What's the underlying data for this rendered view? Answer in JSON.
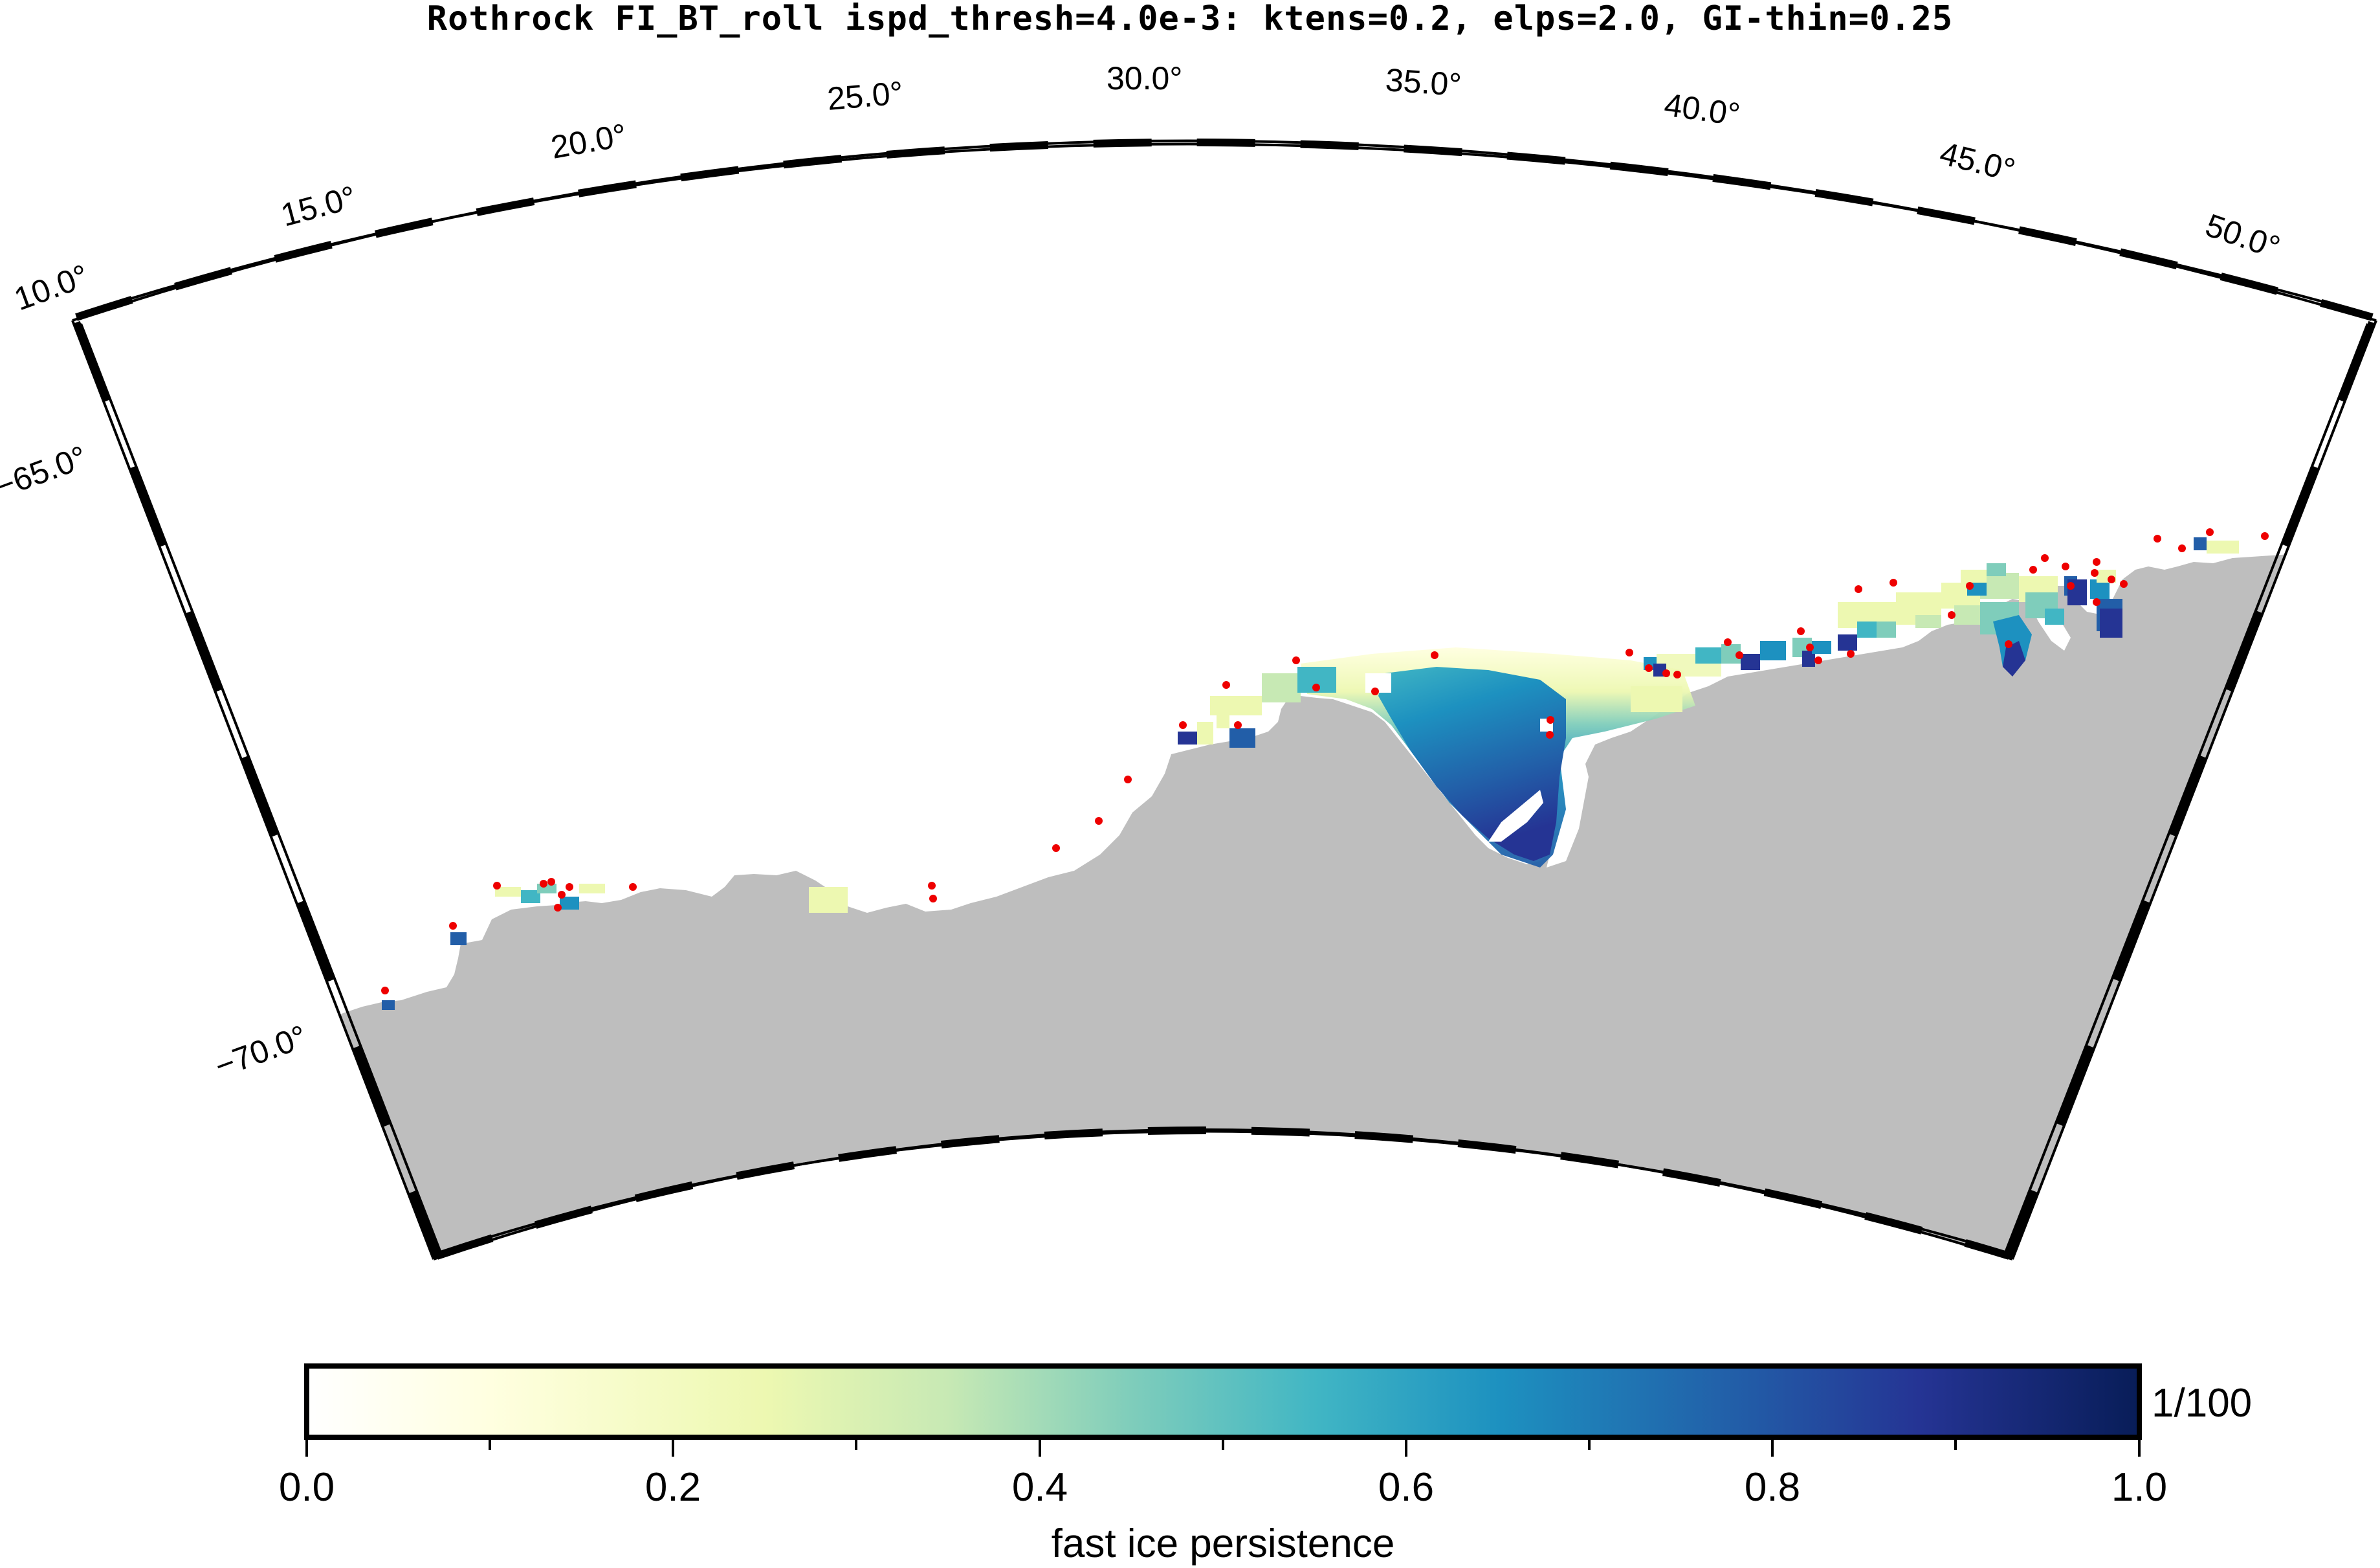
{
  "title": "Rothrock FI_BT_roll ispd_thresh=4.0e-3: ktens=0.2, elps=2.0, GI-thin=0.25",
  "map": {
    "longitude_labels": [
      "10.0°",
      "15.0°",
      "20.0°",
      "25.0°",
      "30.0°",
      "35.0°",
      "40.0°",
      "45.0°",
      "50.0°"
    ],
    "latitude_labels": [
      "−65.0°",
      "−70.0°"
    ],
    "land_color": "#bebebe",
    "grounded_iceberg_marker_color": "#ee0000"
  },
  "colorbar": {
    "label": "fast ice persistence",
    "unit": "1/100",
    "min": 0.0,
    "max": 1.0,
    "tick_labels": [
      "0.0",
      "0.2",
      "0.4",
      "0.6",
      "0.8",
      "1.0"
    ],
    "colors": [
      "#ffffe0",
      "#edf8b1",
      "#c7e9b4",
      "#7fcdbb",
      "#41b6c4",
      "#1d91c0",
      "#225ea8",
      "#253494",
      "#081d58"
    ]
  }
}
